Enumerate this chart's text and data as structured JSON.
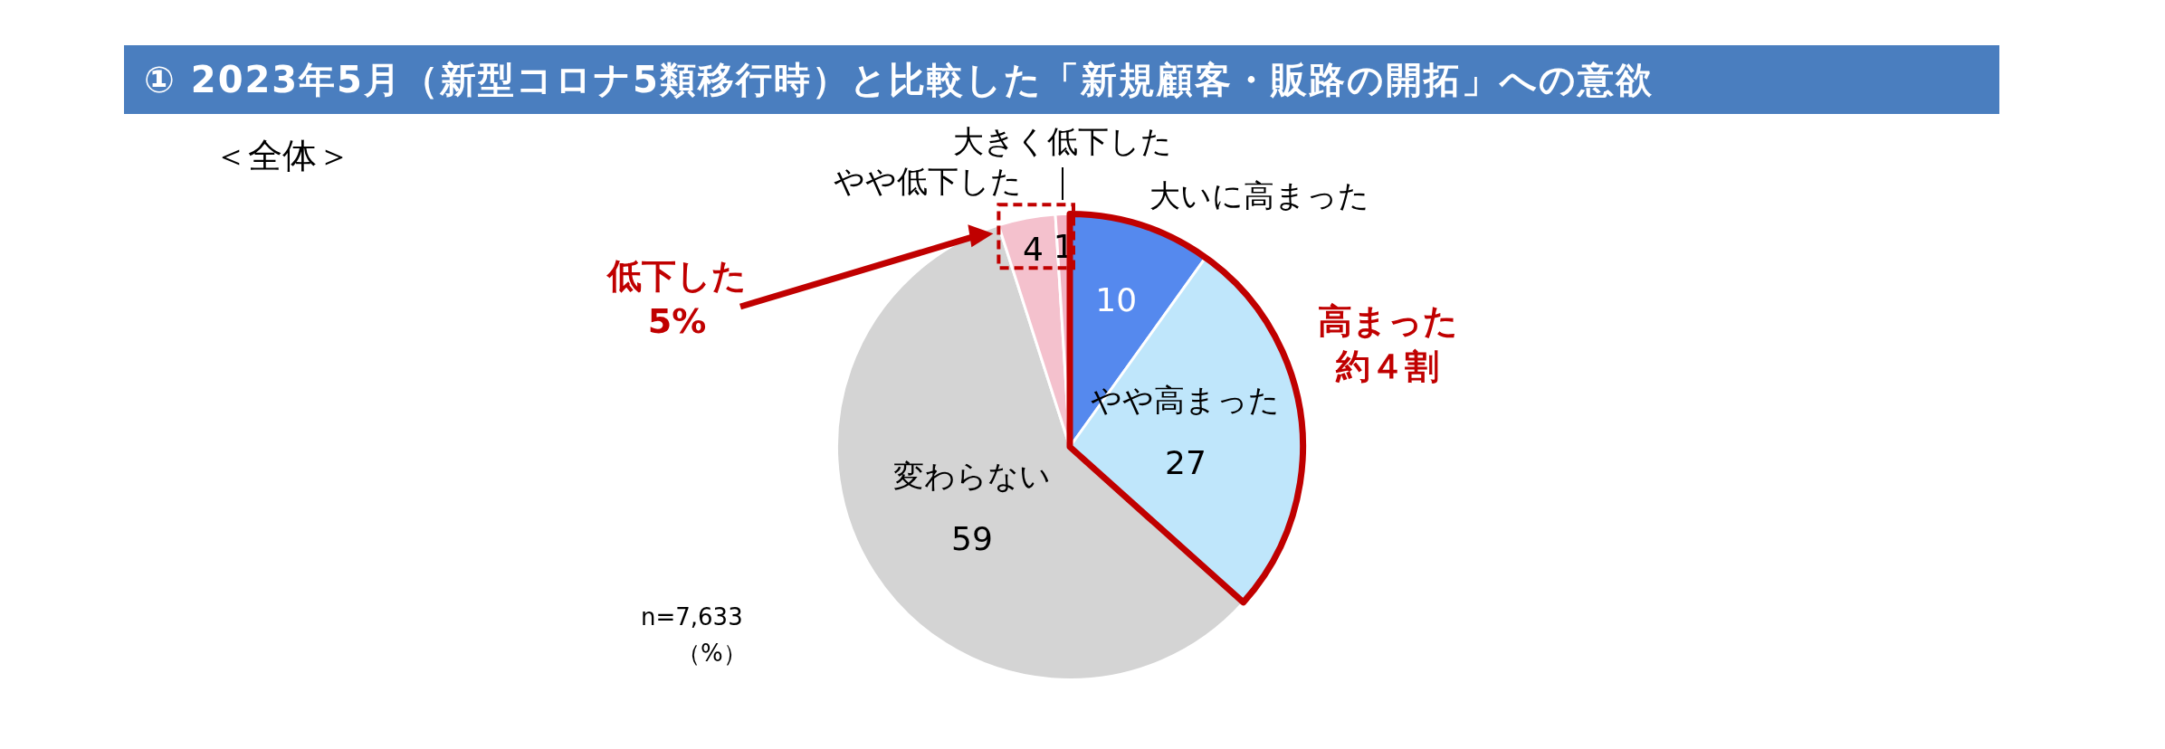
{
  "chart_data": {
    "type": "pie",
    "title": "① 2023年5月（新型コロナ5類移行時）と比較した「新規顧客・販路の開拓」への意欲",
    "categories": [
      "大いに高まった",
      "やや高まった",
      "変わらない",
      "やや低下した",
      "大きく低下した"
    ],
    "values": [
      10,
      27,
      59,
      4,
      1
    ],
    "colors": [
      "#5589ee",
      "#bfe6fb",
      "#d4d4d4",
      "#f4c1cd",
      "#f2b3c3"
    ],
    "data_labels": true,
    "legend": false,
    "annotations": [
      "＜全体＞",
      "低下した",
      "5%",
      "高まった",
      "約４割",
      "n=7,633",
      "（%）"
    ]
  }
}
